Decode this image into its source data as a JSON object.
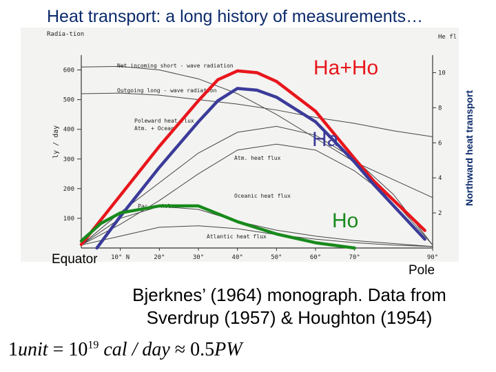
{
  "title": "Heat transport: a long history of measurements…",
  "caption_line1": "Bjerknes’ (1964) monograph. Data from",
  "caption_line2": "Sverdrup (1957) & Houghton (1954)",
  "formula": {
    "lead": "1",
    "unit": "unit",
    "equals": " = 10",
    "exp": "19",
    "cal": " cal / day",
    "approx": " ≈ ",
    "pw": "0.5",
    "pw_unit": "PW"
  },
  "chart_data": {
    "type": "line",
    "x_labels": [
      "10° N",
      "20°",
      "30°",
      "40°",
      "50°",
      "60°",
      "70°",
      "90°"
    ],
    "x_ticks_lat": [
      10,
      20,
      30,
      40,
      50,
      60,
      70,
      90
    ],
    "y_left_label": "ly / day",
    "y_left_ticks": [
      100,
      200,
      300,
      400,
      500,
      600
    ],
    "y_left_title": "Radia-tion",
    "y_right_label": "Northward heat transport",
    "y_right_ticks": [
      2,
      4,
      6,
      8,
      10
    ],
    "y_right_title": "He fl",
    "end_labels": {
      "left": "Equator",
      "right": "Pole"
    },
    "series": [
      {
        "name": "Ha+Ho",
        "color": "#e8161c",
        "x": [
          0,
          10,
          20,
          30,
          35,
          40,
          45,
          50,
          60,
          70,
          75,
          88
        ],
        "y": [
          0.2,
          3.0,
          5.8,
          8.4,
          9.6,
          10.1,
          10.0,
          9.5,
          7.8,
          5.1,
          3.8,
          1.0
        ]
      },
      {
        "name": "Ha",
        "color": "#3b3b9a",
        "x": [
          4,
          10,
          20,
          30,
          35,
          40,
          45,
          50,
          60,
          70,
          75,
          88
        ],
        "y": [
          0.0,
          1.8,
          4.6,
          7.2,
          8.4,
          9.1,
          9.0,
          8.6,
          7.2,
          4.9,
          3.6,
          0.5
        ]
      },
      {
        "name": "Ho",
        "color": "#188a1c",
        "x": [
          0,
          5,
          10,
          20,
          30,
          40,
          50,
          60,
          70
        ],
        "y": [
          0.4,
          1.4,
          2.0,
          2.4,
          2.4,
          1.5,
          0.8,
          0.3,
          0.0
        ]
      }
    ],
    "background_curves": [
      {
        "label": "Net incoming short - wave radiation",
        "y_ly": [
          610,
          612,
          600,
          570,
          520,
          450,
          370,
          290,
          230,
          170
        ]
      },
      {
        "label": "Outgoing long - wave radiation",
        "y_ly": [
          520,
          522,
          515,
          500,
          485,
          465,
          440,
          420,
          395,
          375
        ]
      },
      {
        "label": "Poleward heat flux  Atm. + Ocean",
        "y_ly": [
          10,
          120,
          220,
          320,
          390,
          410,
          380,
          300,
          180,
          10
        ]
      },
      {
        "label": "Atm. heat flux",
        "y_ly": [
          10,
          80,
          160,
          250,
          330,
          350,
          330,
          260,
          160,
          10
        ]
      },
      {
        "label": "Oceanic heat flux",
        "y_ly": [
          10,
          100,
          140,
          130,
          90,
          60,
          40,
          25,
          15,
          5
        ]
      },
      {
        "label": "Pac. + Atl.",
        "y_ly": []
      },
      {
        "label": "Atlantic heat flux",
        "y_ly": [
          10,
          40,
          70,
          75,
          65,
          45,
          30,
          18,
          10,
          5
        ]
      }
    ]
  }
}
